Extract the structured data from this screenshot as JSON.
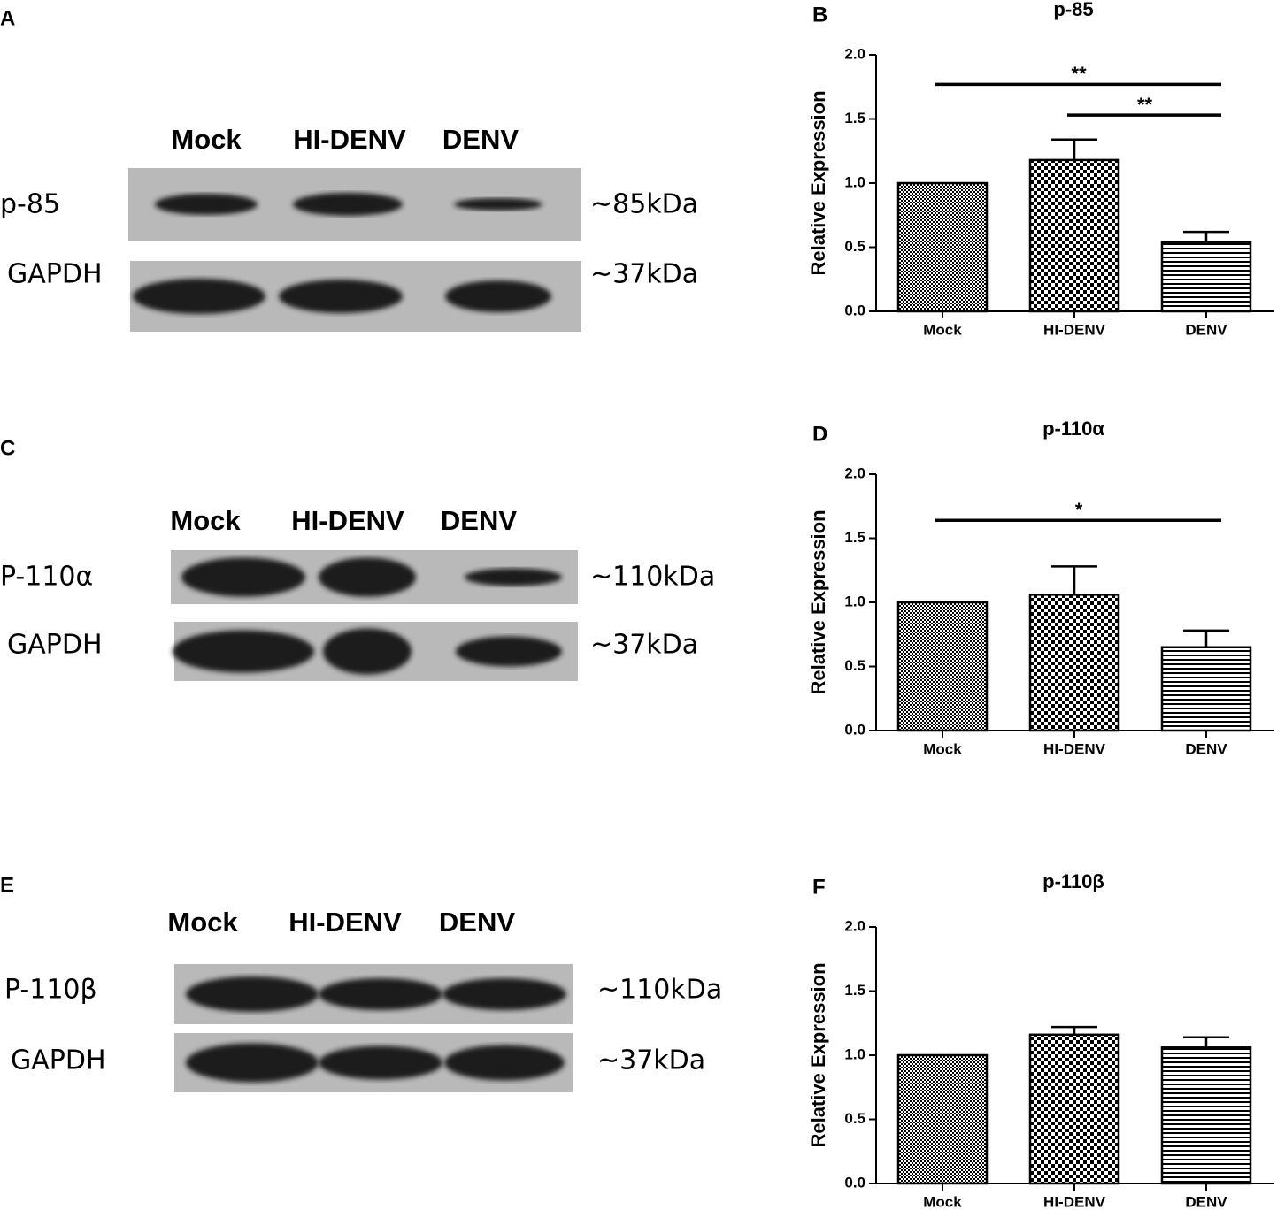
{
  "blots": [
    {
      "panel": "A",
      "lanes": [
        "Mock",
        "HI-DENV",
        "DENV"
      ],
      "rows": [
        {
          "label": "p-85",
          "size": "~85kDa"
        },
        {
          "label": "GAPDH",
          "size": "~37kDa"
        }
      ]
    },
    {
      "panel": "C",
      "lanes": [
        "Mock",
        "HI-DENV",
        "DENV"
      ],
      "rows": [
        {
          "label": "P-110α",
          "size": "~110kDa"
        },
        {
          "label": "GAPDH",
          "size": "~37kDa"
        }
      ]
    },
    {
      "panel": "E",
      "lanes": [
        "Mock",
        "HI-DENV",
        "DENV"
      ],
      "rows": [
        {
          "label": "P-110β",
          "size": "~110kDa"
        },
        {
          "label": "GAPDH",
          "size": "~37kDa"
        }
      ]
    }
  ],
  "chart_data": [
    {
      "type": "bar",
      "panel": "B",
      "title": "p-85",
      "y_label": "Relative Expression",
      "categories": [
        "Mock",
        "HI-DENV",
        "DENV"
      ],
      "values": [
        1.0,
        1.18,
        0.54
      ],
      "errors": [
        null,
        0.16,
        0.08
      ],
      "patterns": [
        "fine-check",
        "check",
        "hlines"
      ],
      "color": "#000000",
      "ylim": [
        0,
        2
      ],
      "yticks": [
        {
          "value": 0,
          "label": "0.0"
        },
        {
          "value": 0.5,
          "label": "0.5"
        },
        {
          "value": 1,
          "label": "1.0"
        },
        {
          "value": 1.5,
          "label": "1.5"
        },
        {
          "value": 2,
          "label": "2.0"
        }
      ],
      "significance": [
        {
          "label": "**",
          "between": [
            0,
            2
          ],
          "y": 1.77
        },
        {
          "label": "**",
          "between": [
            1,
            2
          ],
          "y": 1.53
        }
      ]
    },
    {
      "type": "bar",
      "panel": "D",
      "title": "p-110α",
      "y_label": "Relative Expression",
      "categories": [
        "Mock",
        "HI-DENV",
        "DENV"
      ],
      "values": [
        1.0,
        1.06,
        0.65
      ],
      "errors": [
        null,
        0.22,
        0.13
      ],
      "patterns": [
        "fine-check",
        "check",
        "hlines"
      ],
      "color": "#000000",
      "ylim": [
        0,
        2
      ],
      "yticks": [
        {
          "value": 0,
          "label": "0.0"
        },
        {
          "value": 0.5,
          "label": "0.5"
        },
        {
          "value": 1,
          "label": "1.0"
        },
        {
          "value": 1.5,
          "label": "1.5"
        },
        {
          "value": 2,
          "label": "2.0"
        }
      ],
      "significance": [
        {
          "label": "*",
          "between": [
            0,
            2
          ],
          "y": 1.64
        }
      ]
    },
    {
      "type": "bar",
      "panel": "F",
      "title": "p-110β",
      "y_label": "Relative Expression",
      "categories": [
        "Mock",
        "HI-DENV",
        "DENV"
      ],
      "values": [
        1.0,
        1.16,
        1.06
      ],
      "errors": [
        null,
        0.06,
        0.08
      ],
      "patterns": [
        "fine-check",
        "check",
        "hlines"
      ],
      "color": "#000000",
      "ylim": [
        0,
        2
      ],
      "yticks": [
        {
          "value": 0,
          "label": "0.0"
        },
        {
          "value": 0.5,
          "label": "0.5"
        },
        {
          "value": 1,
          "label": "1.0"
        },
        {
          "value": 1.5,
          "label": "1.5"
        },
        {
          "value": 2,
          "label": "2.0"
        }
      ],
      "significance": []
    }
  ]
}
